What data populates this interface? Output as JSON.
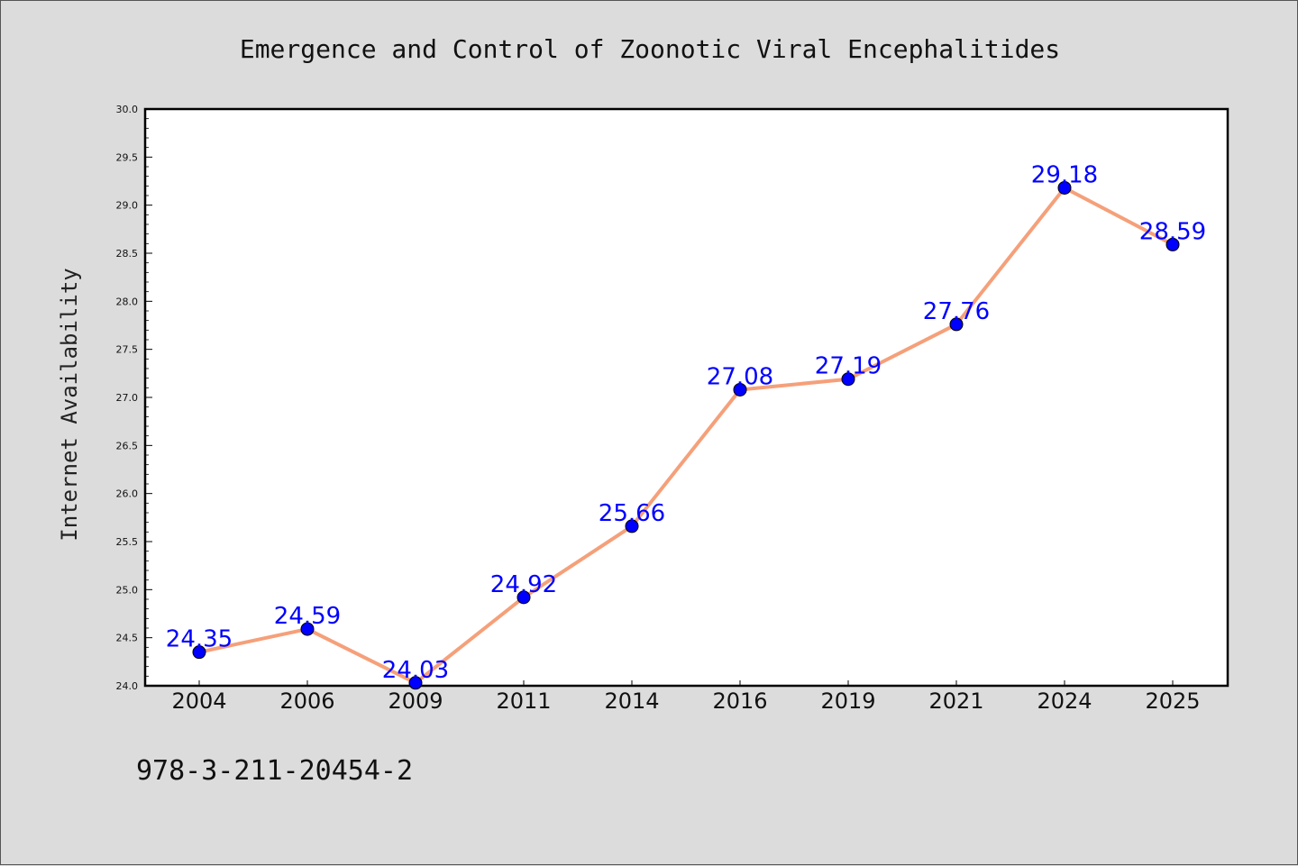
{
  "chart_data": {
    "type": "line",
    "title": "Emergence and Control of Zoonotic Viral Encephalitides",
    "xlabel": "",
    "ylabel": "Internet Availability",
    "categories": [
      "2004",
      "2006",
      "2009",
      "2011",
      "2014",
      "2016",
      "2019",
      "2021",
      "2024",
      "2025"
    ],
    "series": [
      {
        "values": [
          24.35,
          24.59,
          24.03,
          24.92,
          25.66,
          27.08,
          27.19,
          27.76,
          29.18,
          28.59
        ],
        "line_color": "#f5a07a",
        "marker_color": "#0000ff",
        "label_color": "#0000ff"
      }
    ],
    "data_labels": [
      "24.35",
      "24.59",
      "24.03",
      "24.92",
      "25.66",
      "27.08",
      "27.19",
      "27.76",
      "29.18",
      "28.59"
    ],
    "ylim": [
      24.0,
      30.0
    ],
    "yticks": [
      "24.0",
      "24.5",
      "25.0",
      "25.5",
      "26.0",
      "26.5",
      "27.0",
      "27.5",
      "28.0",
      "28.5",
      "29.0",
      "29.5",
      "30.0"
    ],
    "grid": false,
    "legend": "none"
  },
  "footer_text": "978-3-211-20454-2",
  "colors": {
    "background": "#dcdcdc",
    "plot_area": "#ffffff"
  }
}
